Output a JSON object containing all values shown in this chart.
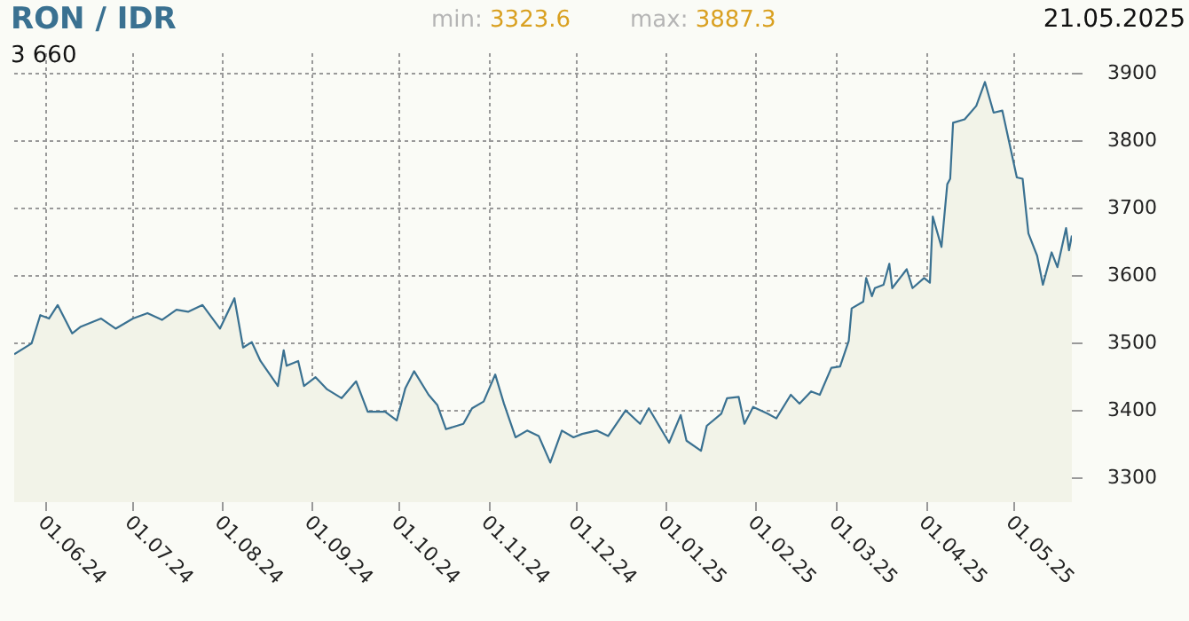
{
  "chart_data": {
    "type": "area",
    "title": "RON / IDR",
    "annotations": [
      "min: 3323.6",
      "max: 3887.3",
      "21.05.2025",
      "3 660"
    ],
    "x": [
      "2024-05-21",
      "2024-05-27",
      "2024-05-30",
      "2024-06-02",
      "2024-06-05",
      "2024-06-10",
      "2024-06-13",
      "2024-06-20",
      "2024-06-25",
      "2024-07-01",
      "2024-07-06",
      "2024-07-11",
      "2024-07-16",
      "2024-07-20",
      "2024-07-25",
      "2024-07-31",
      "2024-08-05",
      "2024-08-08",
      "2024-08-11",
      "2024-08-14",
      "2024-08-20",
      "2024-08-22",
      "2024-08-23",
      "2024-08-27",
      "2024-08-29",
      "2024-09-02",
      "2024-09-06",
      "2024-09-11",
      "2024-09-16",
      "2024-09-20",
      "2024-09-26",
      "2024-09-30",
      "2024-10-03",
      "2024-10-06",
      "2024-10-11",
      "2024-10-14",
      "2024-10-17",
      "2024-10-23",
      "2024-10-26",
      "2024-10-30",
      "2024-11-03",
      "2024-11-06",
      "2024-11-10",
      "2024-11-14",
      "2024-11-18",
      "2024-11-22",
      "2024-11-26",
      "2024-11-30",
      "2024-12-03",
      "2024-12-08",
      "2024-12-12",
      "2024-12-18",
      "2024-12-23",
      "2024-12-26",
      "2025-01-02",
      "2025-01-06",
      "2025-01-08",
      "2025-01-13",
      "2025-01-15",
      "2025-01-20",
      "2025-01-22",
      "2025-01-26",
      "2025-01-28",
      "2025-01-31",
      "2025-02-05",
      "2025-02-08",
      "2025-02-13",
      "2025-02-16",
      "2025-02-20",
      "2025-02-23",
      "2025-02-27",
      "2025-03-02",
      "2025-03-05",
      "2025-03-06",
      "2025-03-10",
      "2025-03-11",
      "2025-03-13",
      "2025-03-14",
      "2025-03-17",
      "2025-03-19",
      "2025-03-20",
      "2025-03-25",
      "2025-03-27",
      "2025-03-31",
      "2025-04-02",
      "2025-04-03",
      "2025-04-06",
      "2025-04-08",
      "2025-04-09",
      "2025-04-10",
      "2025-04-14",
      "2025-04-18",
      "2025-04-21",
      "2025-04-24",
      "2025-04-27",
      "2025-05-02",
      "2025-05-04",
      "2025-05-06",
      "2025-05-09",
      "2025-05-11",
      "2025-05-14",
      "2025-05-16",
      "2025-05-19",
      "2025-05-20",
      "2025-05-21"
    ],
    "series": [
      {
        "color": "#3a7191",
        "values": [
          3484,
          3500,
          3542,
          3537,
          3557,
          3515,
          3525,
          3537,
          3522,
          3537,
          3545,
          3535,
          3550,
          3547,
          3557,
          3522,
          3567,
          3494,
          3502,
          3474,
          3437,
          3490,
          3467,
          3474,
          3437,
          3450,
          3432,
          3419,
          3444,
          3399,
          3399,
          3386,
          3434,
          3459,
          3424,
          3409,
          3373,
          3381,
          3404,
          3414,
          3454,
          3411,
          3361,
          3371,
          3363,
          3323.6,
          3371,
          3361,
          3366,
          3371,
          3363,
          3401,
          3381,
          3404,
          3353,
          3394,
          3356,
          3341,
          3378,
          3396,
          3419,
          3421,
          3381,
          3406,
          3396,
          3389,
          3424,
          3411,
          3429,
          3424,
          3464,
          3466,
          3504,
          3552,
          3562,
          3597,
          3570,
          3582,
          3587,
          3618,
          3582,
          3610,
          3582,
          3597,
          3590,
          3688,
          3643,
          3736,
          3744,
          3827,
          3832,
          3852,
          3887.3,
          3842,
          3845,
          3746,
          3744,
          3663,
          3630,
          3587,
          3635,
          3613,
          3671,
          3638,
          3660
        ]
      }
    ],
    "ylim": [
      3265,
      3930
    ],
    "yticks": [
      3300,
      3400,
      3500,
      3600,
      3700,
      3800,
      3900
    ],
    "xlim": [
      "2024-05-21",
      "2025-05-21"
    ],
    "xticks": [
      {
        "value": "2024-06-01",
        "label": "01.06.24"
      },
      {
        "value": "2024-07-01",
        "label": "01.07.24"
      },
      {
        "value": "2024-08-01",
        "label": "01.08.24"
      },
      {
        "value": "2024-09-01",
        "label": "01.09.24"
      },
      {
        "value": "2024-10-01",
        "label": "01.10.24"
      },
      {
        "value": "2024-11-01",
        "label": "01.11.24"
      },
      {
        "value": "2024-12-01",
        "label": "01.12.24"
      },
      {
        "value": "2025-01-01",
        "label": "01.01.25"
      },
      {
        "value": "2025-02-01",
        "label": "01.02.25"
      },
      {
        "value": "2025-03-01",
        "label": "01.03.25"
      },
      {
        "value": "2025-04-01",
        "label": "01.04.25"
      },
      {
        "value": "2025-05-01",
        "label": "01.05.25"
      }
    ],
    "grid": true,
    "legend": false
  }
}
